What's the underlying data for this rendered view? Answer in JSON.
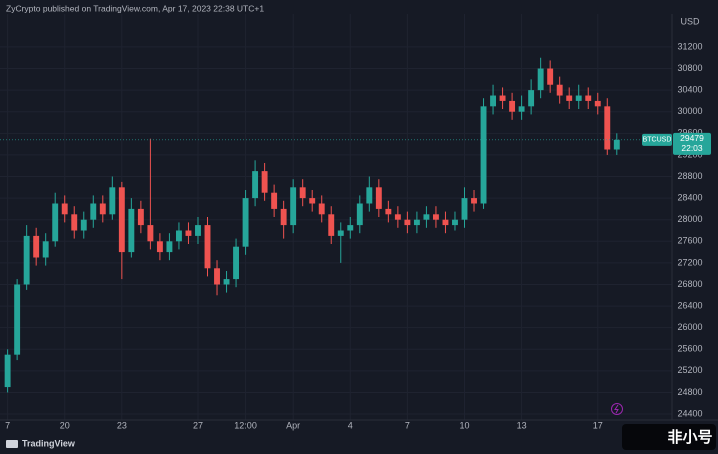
{
  "header": "ZyCrypto published on TradingView.com, Apr 17, 2023 22:38 UTC+1",
  "footer": "TradingView",
  "watermark": "非小号",
  "chart_data": {
    "type": "candlestick",
    "y_axis_label": "USD",
    "symbol": "BTCUSD",
    "last_price": 29479,
    "countdown": "22:03",
    "up_color": "#26a69a",
    "down_color": "#ef5350",
    "grid": true,
    "xlim": [
      -0.4,
      34.9
    ],
    "ylim": [
      24290,
      31810
    ],
    "xticks": [
      {
        "value": 0,
        "label": "7"
      },
      {
        "value": 3,
        "label": "20"
      },
      {
        "value": 6,
        "label": "23"
      },
      {
        "value": 10,
        "label": "27"
      },
      {
        "value": 12.5,
        "label": "12:00"
      },
      {
        "value": 15,
        "label": "Apr"
      },
      {
        "value": 18,
        "label": "4"
      },
      {
        "value": 21,
        "label": "7"
      },
      {
        "value": 24,
        "label": "10"
      },
      {
        "value": 27,
        "label": "13"
      },
      {
        "value": 31,
        "label": "17"
      }
    ],
    "yticks": [
      24400,
      24800,
      25200,
      25600,
      26000,
      26400,
      26800,
      27200,
      27600,
      28000,
      28400,
      28800,
      29200,
      29600,
      30000,
      30400,
      30800,
      31200
    ],
    "x": [
      0,
      0.5,
      1,
      1.5,
      2,
      2.5,
      3,
      3.5,
      4,
      4.5,
      5,
      5.5,
      6,
      6.5,
      7,
      7.5,
      8,
      8.5,
      9,
      9.5,
      10,
      10.5,
      11,
      11.5,
      12,
      12.5,
      13,
      13.5,
      14,
      14.5,
      15,
      15.5,
      16,
      16.5,
      17,
      17.5,
      18,
      18.5,
      19,
      19.5,
      20,
      20.5,
      21,
      21.5,
      22,
      22.5,
      23,
      23.5,
      24,
      24.5,
      25,
      25.5,
      26,
      26.5,
      27,
      27.5,
      28,
      28.5,
      29,
      29.5,
      30,
      30.5,
      31,
      31.5,
      32
    ],
    "open": [
      24900,
      25500,
      26800,
      27700,
      27300,
      27600,
      28300,
      28100,
      27800,
      28000,
      28300,
      28100,
      28600,
      27400,
      28200,
      27900,
      27600,
      27400,
      27600,
      27800,
      27700,
      27900,
      27100,
      26800,
      26900,
      27500,
      28400,
      28900,
      28500,
      28200,
      27900,
      28600,
      28400,
      28300,
      28100,
      27700,
      27800,
      27900,
      28300,
      28600,
      28200,
      28100,
      28000,
      27900,
      28000,
      28100,
      28000,
      27900,
      28000,
      28400,
      28300,
      30100,
      30300,
      30200,
      30000,
      30100,
      30400,
      30800,
      30500,
      30300,
      30200,
      30300,
      30200,
      30100,
      29300
    ],
    "high": [
      25600,
      26900,
      27900,
      27850,
      27750,
      28500,
      28450,
      28250,
      28150,
      28450,
      28450,
      28800,
      28700,
      28400,
      28350,
      29500,
      27750,
      27750,
      27950,
      27950,
      28050,
      28050,
      27250,
      27050,
      27650,
      28550,
      29100,
      29050,
      28650,
      28350,
      28750,
      28750,
      28550,
      28450,
      28250,
      27950,
      28050,
      28450,
      28800,
      28750,
      28350,
      28250,
      28150,
      28150,
      28250,
      28250,
      28150,
      28150,
      28600,
      28550,
      30250,
      30500,
      30450,
      30350,
      30300,
      30600,
      31000,
      30950,
      30650,
      30450,
      30500,
      30450,
      30350,
      30250,
      29600
    ],
    "low": [
      24800,
      25400,
      26700,
      27150,
      27150,
      27500,
      27950,
      27650,
      27650,
      27850,
      27950,
      28000,
      26900,
      27300,
      27750,
      27450,
      27250,
      27250,
      27450,
      27550,
      27550,
      26950,
      26600,
      26650,
      26750,
      27350,
      28250,
      28350,
      28050,
      27650,
      27750,
      28250,
      28150,
      27950,
      27550,
      27200,
      27650,
      27750,
      28150,
      28050,
      27950,
      27850,
      27750,
      27750,
      27850,
      27850,
      27750,
      27800,
      27850,
      28150,
      28200,
      29950,
      30050,
      29850,
      29850,
      29950,
      30250,
      30350,
      30150,
      30050,
      30050,
      30050,
      29950,
      29200,
      29200
    ],
    "close": [
      25500,
      26800,
      27700,
      27300,
      27600,
      28300,
      28100,
      27800,
      28000,
      28300,
      28100,
      28600,
      27400,
      28200,
      27900,
      27600,
      27400,
      27600,
      27800,
      27700,
      27900,
      27100,
      26800,
      26900,
      27500,
      28400,
      28900,
      28500,
      28200,
      27900,
      28600,
      28400,
      28300,
      28100,
      27700,
      27800,
      27900,
      28300,
      28600,
      28200,
      28100,
      28000,
      27900,
      28000,
      28100,
      28000,
      27900,
      28000,
      28400,
      28300,
      30100,
      30300,
      30200,
      30000,
      30100,
      30400,
      30800,
      30500,
      30300,
      30200,
      30300,
      30200,
      30100,
      29300,
      29479
    ]
  }
}
